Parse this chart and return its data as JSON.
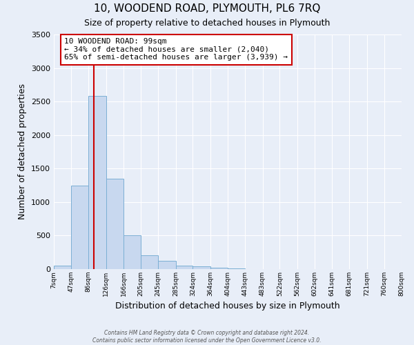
{
  "title": "10, WOODEND ROAD, PLYMOUTH, PL6 7RQ",
  "subtitle": "Size of property relative to detached houses in Plymouth",
  "xlabel": "Distribution of detached houses by size in Plymouth",
  "ylabel": "Number of detached properties",
  "bar_color": "#c8d8ef",
  "bar_edge_color": "#7bafd4",
  "background_color": "#e8eef8",
  "grid_color": "#ffffff",
  "vline_x": 99,
  "vline_color": "#cc0000",
  "annotation_title": "10 WOODEND ROAD: 99sqm",
  "annotation_line1": "← 34% of detached houses are smaller (2,040)",
  "annotation_line2": "65% of semi-detached houses are larger (3,939) →",
  "annotation_box_color": "#ffffff",
  "annotation_box_edge": "#cc0000",
  "bins": [
    7,
    47,
    86,
    126,
    166,
    205,
    245,
    285,
    324,
    364,
    404,
    443,
    483,
    522,
    562,
    602,
    641,
    681,
    721,
    760,
    800
  ],
  "bin_labels": [
    "7sqm",
    "47sqm",
    "86sqm",
    "126sqm",
    "166sqm",
    "205sqm",
    "245sqm",
    "285sqm",
    "324sqm",
    "364sqm",
    "404sqm",
    "443sqm",
    "483sqm",
    "522sqm",
    "562sqm",
    "602sqm",
    "641sqm",
    "681sqm",
    "721sqm",
    "760sqm",
    "800sqm"
  ],
  "counts": [
    50,
    1250,
    2580,
    1350,
    500,
    210,
    120,
    50,
    40,
    25,
    10,
    0,
    0,
    0,
    0,
    0,
    0,
    0,
    0,
    0
  ],
  "ylim": [
    0,
    3500
  ],
  "yticks": [
    0,
    500,
    1000,
    1500,
    2000,
    2500,
    3000,
    3500
  ],
  "footer_line1": "Contains HM Land Registry data © Crown copyright and database right 2024.",
  "footer_line2": "Contains public sector information licensed under the Open Government Licence v3.0."
}
